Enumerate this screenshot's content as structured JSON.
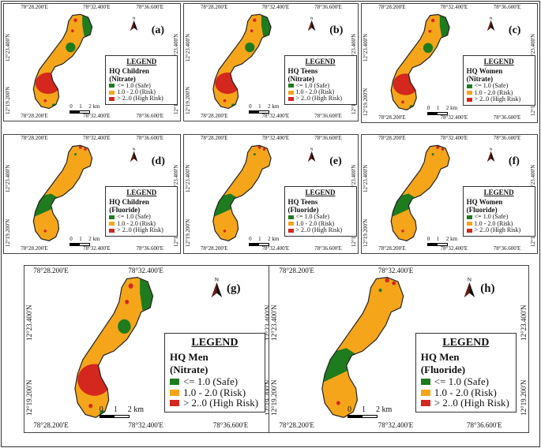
{
  "colors": {
    "safe": "#1e7b1e",
    "risk": "#f5a51a",
    "high": "#d4271d",
    "outline": "#222222"
  },
  "coords": {
    "lon": [
      "78°28.200'E",
      "78°32.400'E",
      "78°36.600'E"
    ],
    "lat": [
      "12°23.400'N",
      "12°19.200'N"
    ]
  },
  "scale": {
    "zero": "0",
    "one": "1",
    "two": "2 km"
  },
  "north_label": "N",
  "legend": {
    "title": "LEGEND",
    "safe": "<= 1.0 (Safe)",
    "risk": "1.0 - 2.0 (Risk)",
    "high": "> 2..0 (High Risk)"
  },
  "panels": [
    {
      "label": "(a)",
      "hq": "HQ Children",
      "param": "(Nitrate)"
    },
    {
      "label": "(b)",
      "hq": "HQ Teens",
      "param": "(Nitrate)"
    },
    {
      "label": "(c)",
      "hq": "HQ Women",
      "param": "(Nitrate)"
    },
    {
      "label": "(d)",
      "hq": "HQ Children",
      "param": "(Fluoride)"
    },
    {
      "label": "(e)",
      "hq": "HQ Teens",
      "param": "(Fluoride)"
    },
    {
      "label": "(f)",
      "hq": "HQ Women",
      "param": "(Fluoride)"
    },
    {
      "label": "(g)",
      "hq": "HQ Men",
      "param": "(Nitrate)"
    },
    {
      "label": "(h)",
      "hq": "HQ Men",
      "param": "(Fluoride)"
    }
  ]
}
